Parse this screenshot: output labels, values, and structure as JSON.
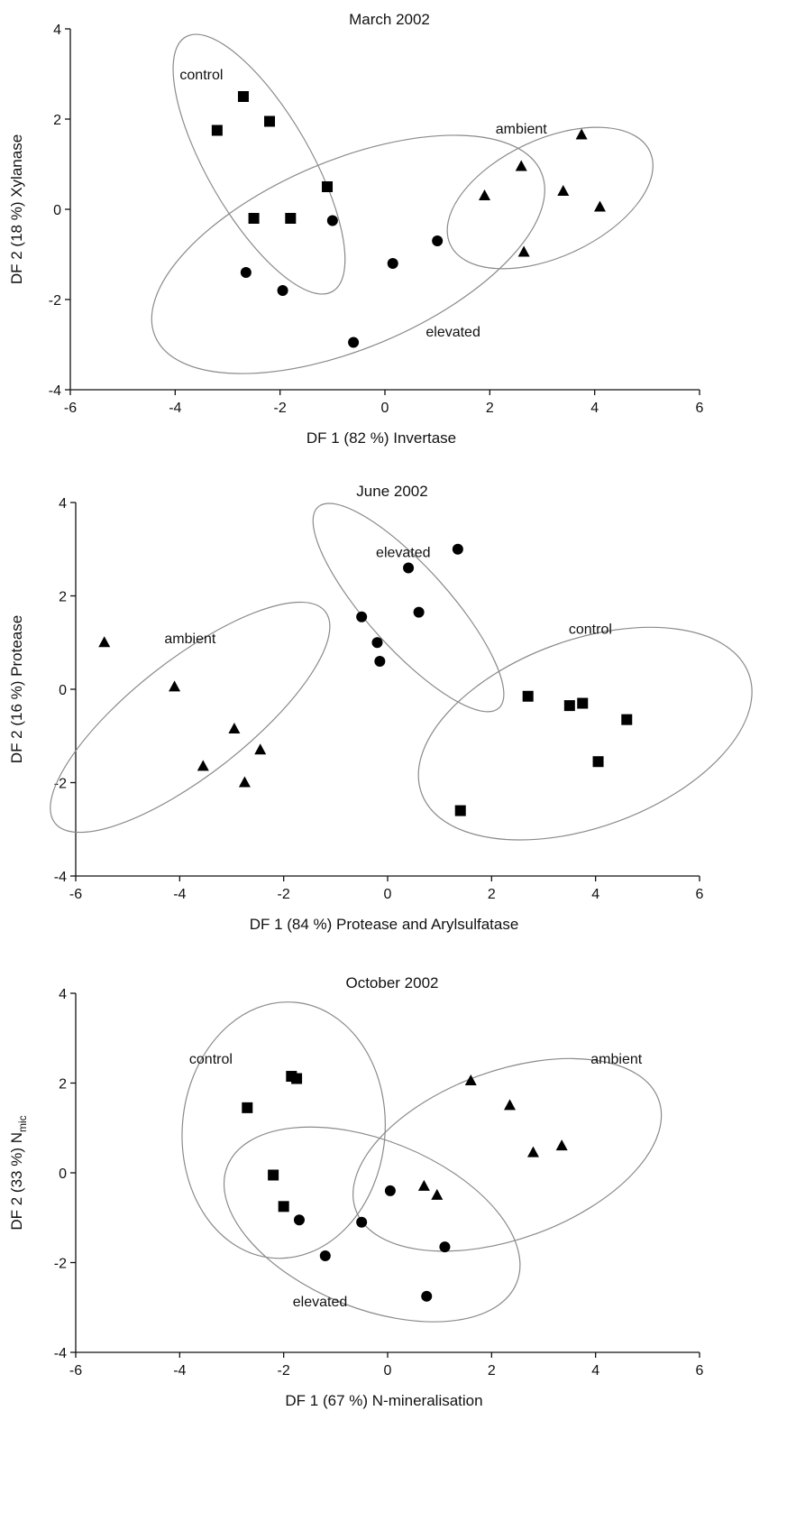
{
  "chart_data": [
    {
      "type": "scatter",
      "title": "March 2002",
      "xlabel": "DF 1 (82 %) Invertase",
      "ylabel": "DF 2 (18 %) Xylanase",
      "ylabel_sub": "",
      "xlim": [
        -6,
        6
      ],
      "ylim": [
        -4,
        4
      ],
      "xticks": [
        "-6",
        "-4",
        "-2",
        "0",
        "2",
        "4",
        "6"
      ],
      "yticks": [
        "-4",
        "-2",
        "0",
        "2",
        "4"
      ],
      "grid": false,
      "series": [
        {
          "name": "control",
          "marker": "square",
          "points": [
            [
              -3.2,
              1.75
            ],
            [
              -2.7,
              2.5
            ],
            [
              -2.2,
              1.95
            ],
            [
              -2.5,
              -0.2
            ],
            [
              -1.8,
              -0.2
            ],
            [
              -1.1,
              0.5
            ]
          ],
          "ellipse": {
            "cx": -2.4,
            "cy": 1.0,
            "rx": 2.8,
            "ry": 1.1,
            "angle": -60
          },
          "label_pos": [
            -3.5,
            3.0
          ]
        },
        {
          "name": "ambient",
          "marker": "triangle",
          "points": [
            [
              1.9,
              0.3
            ],
            [
              2.6,
              0.95
            ],
            [
              3.75,
              1.65
            ],
            [
              3.4,
              0.4
            ],
            [
              4.1,
              0.05
            ],
            [
              2.65,
              -0.95
            ]
          ],
          "ellipse": {
            "cx": 3.15,
            "cy": 0.25,
            "rx": 2.1,
            "ry": 1.25,
            "angle": 25
          },
          "label_pos": [
            2.6,
            1.8
          ]
        },
        {
          "name": "elevated",
          "marker": "circle",
          "points": [
            [
              -1.0,
              -0.25
            ],
            [
              -2.65,
              -1.4
            ],
            [
              -1.95,
              -1.8
            ],
            [
              0.15,
              -1.2
            ],
            [
              1.0,
              -0.7
            ],
            [
              -0.6,
              -2.95
            ]
          ],
          "ellipse": {
            "cx": -0.7,
            "cy": -1.0,
            "rx": 4.0,
            "ry": 2.0,
            "angle": 23
          },
          "label_pos": [
            1.3,
            -2.7
          ]
        }
      ]
    },
    {
      "type": "scatter",
      "title": "June 2002",
      "xlabel": "DF 1 (84 %) Protease and Arylsulfatase",
      "ylabel": "DF 2 (16 %) Protease",
      "ylabel_sub": "",
      "xlim": [
        -6,
        6
      ],
      "ylim": [
        -4,
        4
      ],
      "xticks": [
        "-6",
        "-4",
        "-2",
        "0",
        "2",
        "4",
        "6"
      ],
      "yticks": [
        "-4",
        "-2",
        "0",
        "2",
        "4"
      ],
      "grid": false,
      "series": [
        {
          "name": "ambient",
          "marker": "triangle",
          "points": [
            [
              -5.45,
              1.0
            ],
            [
              -4.1,
              0.05
            ],
            [
              -2.95,
              -0.85
            ],
            [
              -2.45,
              -1.3
            ],
            [
              -3.55,
              -1.65
            ],
            [
              -2.75,
              -2.0
            ]
          ],
          "ellipse": {
            "cx": -3.8,
            "cy": -0.6,
            "rx": 3.3,
            "ry": 1.2,
            "angle": 38
          },
          "label_pos": [
            -3.8,
            1.1
          ]
        },
        {
          "name": "elevated",
          "marker": "circle",
          "points": [
            [
              -0.5,
              1.55
            ],
            [
              -0.2,
              1.0
            ],
            [
              -0.15,
              0.6
            ],
            [
              0.4,
              2.6
            ],
            [
              0.6,
              1.65
            ],
            [
              1.35,
              3.0
            ]
          ],
          "ellipse": {
            "cx": 0.4,
            "cy": 1.75,
            "rx": 2.6,
            "ry": 0.85,
            "angle": -48
          },
          "label_pos": [
            0.3,
            2.95
          ]
        },
        {
          "name": "control",
          "marker": "square",
          "points": [
            [
              2.7,
              -0.15
            ],
            [
              3.5,
              -0.35
            ],
            [
              3.75,
              -0.3
            ],
            [
              4.6,
              -0.65
            ],
            [
              4.05,
              -1.55
            ],
            [
              1.4,
              -2.6
            ]
          ],
          "ellipse": {
            "cx": 3.8,
            "cy": -0.95,
            "rx": 3.35,
            "ry": 1.95,
            "angle": 20
          },
          "label_pos": [
            3.9,
            1.3
          ]
        }
      ]
    },
    {
      "type": "scatter",
      "title": "October 2002",
      "xlabel": "DF 1 (67 %) N-mineralisation",
      "ylabel": "DF 2 (33 %) N",
      "ylabel_sub": "mic",
      "xlim": [
        -6,
        6
      ],
      "ylim": [
        -4,
        4
      ],
      "xticks": [
        "-6",
        "-4",
        "-2",
        "0",
        "2",
        "4",
        "6"
      ],
      "yticks": [
        "-4",
        "-2",
        "0",
        "2",
        "4"
      ],
      "grid": false,
      "series": [
        {
          "name": "control",
          "marker": "square",
          "points": [
            [
              -2.7,
              1.45
            ],
            [
              -1.85,
              2.15
            ],
            [
              -1.75,
              2.1
            ],
            [
              -2.2,
              -0.05
            ],
            [
              -2.0,
              -0.75
            ]
          ],
          "ellipse": {
            "cx": -2.0,
            "cy": 0.95,
            "rx": 1.95,
            "ry": 2.75,
            "angle": -5
          },
          "label_pos": [
            -3.4,
            2.55
          ]
        },
        {
          "name": "ambient",
          "marker": "triangle",
          "points": [
            [
              1.6,
              2.05
            ],
            [
              2.35,
              1.5
            ],
            [
              2.8,
              0.45
            ],
            [
              3.35,
              0.6
            ],
            [
              0.7,
              -0.3
            ],
            [
              0.95,
              -0.5
            ]
          ],
          "ellipse": {
            "cx": 2.3,
            "cy": 0.4,
            "rx": 3.1,
            "ry": 1.8,
            "angle": 20
          },
          "label_pos": [
            4.4,
            2.55
          ]
        },
        {
          "name": "elevated",
          "marker": "circle",
          "points": [
            [
              -1.7,
              -1.05
            ],
            [
              -0.5,
              -1.1
            ],
            [
              0.05,
              -0.4
            ],
            [
              1.1,
              -1.65
            ],
            [
              -1.2,
              -1.85
            ],
            [
              0.75,
              -2.75
            ]
          ],
          "ellipse": {
            "cx": -0.3,
            "cy": -1.15,
            "rx": 3.0,
            "ry": 1.8,
            "angle": -22
          },
          "label_pos": [
            -1.3,
            -2.85
          ]
        }
      ]
    }
  ]
}
